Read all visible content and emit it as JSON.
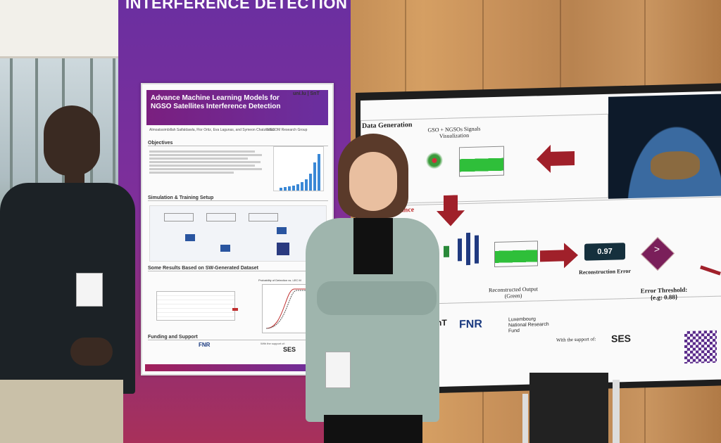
{
  "banner": {
    "title": "INTERFERENCE DETECTION"
  },
  "poster": {
    "title": "Advance Machine Learning Models for NGSO Satellites Interference Detection",
    "logos": "uni.lu | SnT",
    "authors": "Almoatssimbillah Saifaldawla, Flor Ortiz, Eva Lagunas, and Symeon Chatzinotas",
    "group": "SIGCOM Research Group",
    "sections": {
      "objectives": "Objectives",
      "simulation": "Simulation & Training Setup",
      "results": "Some Results Based on SW-Generated Dataset",
      "funding": "Funding and Support"
    },
    "results_plot_label": "Probability of Detection vs. LEC M",
    "support_text": "With the support of:",
    "sponsor_ses": "SES",
    "sponsor_fnr": "FNR"
  },
  "monitor": {
    "data_generation": "Data Generation",
    "signals_title": "GSO + NGSOs Signals Visualization",
    "performance": "rmance",
    "reconstruction_value": "0.97",
    "reconstruction_label": "Reconstruction Error",
    "reconstructed_output_label": "Reconstructed Output (Green)",
    "decision_symbol": ">",
    "threshold_label": "Error Threshold: {e.g: 0.88}",
    "snt": "SnT",
    "fnr": "FNR",
    "fnr_full": "Luxembourg National Research Fund",
    "support": "With the support of:",
    "ses": "SES"
  },
  "colors": {
    "banner_purple": "#6b2fa0",
    "arrow_red": "#a0202a",
    "decision_purple": "#7a1f5a",
    "value_box": "#15303d"
  }
}
